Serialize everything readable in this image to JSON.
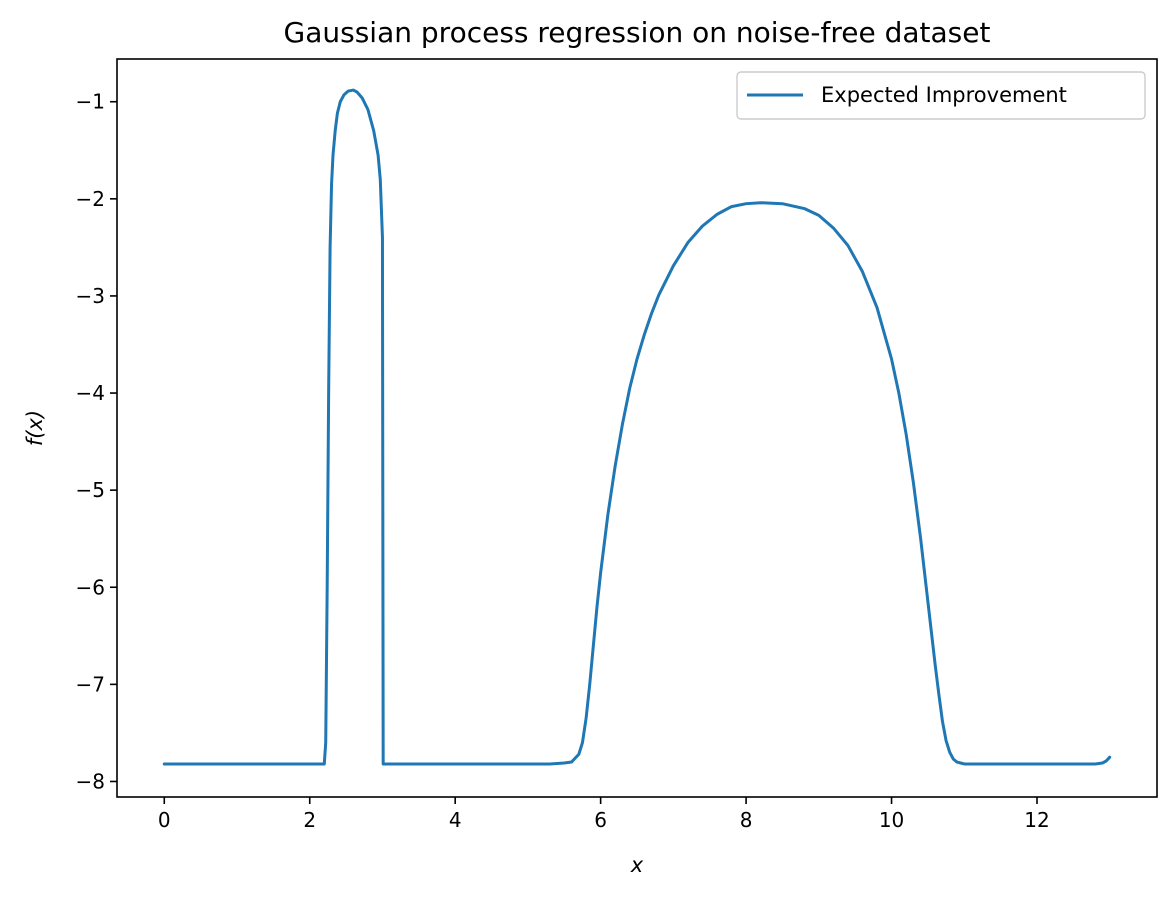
{
  "chart_data": {
    "type": "line",
    "title": "Gaussian process regression on noise-free dataset",
    "xlabel": "x",
    "ylabel": "f(x)",
    "xlim": [
      -0.65,
      13.65
    ],
    "ylim": [
      -8.16,
      -0.56
    ],
    "xticks": [
      0,
      2,
      4,
      6,
      8,
      10,
      12
    ],
    "xtick_labels": [
      "0",
      "2",
      "4",
      "6",
      "8",
      "10",
      "12"
    ],
    "yticks": [
      -8,
      -7,
      -6,
      -5,
      -4,
      -3,
      -2,
      -1
    ],
    "ytick_labels": [
      "−8",
      "−7",
      "−6",
      "−5",
      "−4",
      "−3",
      "−2",
      "−1"
    ],
    "grid": false,
    "legend_position": "top-right",
    "series": [
      {
        "name": "Expected Improvement",
        "color": "#1f77b4",
        "x": [
          0,
          0.5,
          1,
          1.5,
          2,
          2.2,
          2.22,
          2.24,
          2.26,
          2.28,
          2.3,
          2.32,
          2.35,
          2.38,
          2.42,
          2.47,
          2.53,
          2.6,
          2.65,
          2.72,
          2.8,
          2.88,
          2.94,
          2.97,
          2.99,
          3.0,
          3.01,
          3.03,
          3.5,
          4,
          4.5,
          5,
          5.3,
          5.5,
          5.6,
          5.7,
          5.75,
          5.8,
          5.85,
          5.9,
          5.95,
          6.0,
          6.1,
          6.2,
          6.3,
          6.4,
          6.5,
          6.6,
          6.7,
          6.8,
          7.0,
          7.2,
          7.4,
          7.6,
          7.8,
          8.0,
          8.2,
          8.5,
          8.8,
          9.0,
          9.2,
          9.4,
          9.6,
          9.8,
          10.0,
          10.1,
          10.2,
          10.3,
          10.4,
          10.5,
          10.6,
          10.65,
          10.7,
          10.75,
          10.8,
          10.85,
          10.9,
          10.95,
          11.0,
          11.05,
          11.1,
          11.2,
          11.5,
          12.0,
          12.5,
          12.8,
          12.9,
          12.95,
          13.0
        ],
        "y": [
          -7.82,
          -7.82,
          -7.82,
          -7.82,
          -7.82,
          -7.82,
          -7.6,
          -6.0,
          -4.0,
          -2.5,
          -1.85,
          -1.55,
          -1.3,
          -1.12,
          -1.0,
          -0.93,
          -0.89,
          -0.88,
          -0.9,
          -0.96,
          -1.08,
          -1.3,
          -1.55,
          -1.8,
          -2.2,
          -2.4,
          -7.82,
          -7.82,
          -7.82,
          -7.82,
          -7.82,
          -7.82,
          -7.82,
          -7.81,
          -7.8,
          -7.72,
          -7.6,
          -7.35,
          -7.0,
          -6.6,
          -6.2,
          -5.85,
          -5.25,
          -4.75,
          -4.32,
          -3.95,
          -3.65,
          -3.4,
          -3.18,
          -2.99,
          -2.69,
          -2.45,
          -2.28,
          -2.16,
          -2.08,
          -2.05,
          -2.04,
          -2.05,
          -2.1,
          -2.17,
          -2.3,
          -2.48,
          -2.75,
          -3.12,
          -3.65,
          -4.0,
          -4.42,
          -4.92,
          -5.5,
          -6.15,
          -6.8,
          -7.1,
          -7.38,
          -7.58,
          -7.7,
          -7.77,
          -7.8,
          -7.81,
          -7.82,
          -7.82,
          -7.82,
          -7.82,
          -7.82,
          -7.82,
          -7.82,
          -7.82,
          -7.81,
          -7.79,
          -7.75
        ]
      }
    ]
  }
}
